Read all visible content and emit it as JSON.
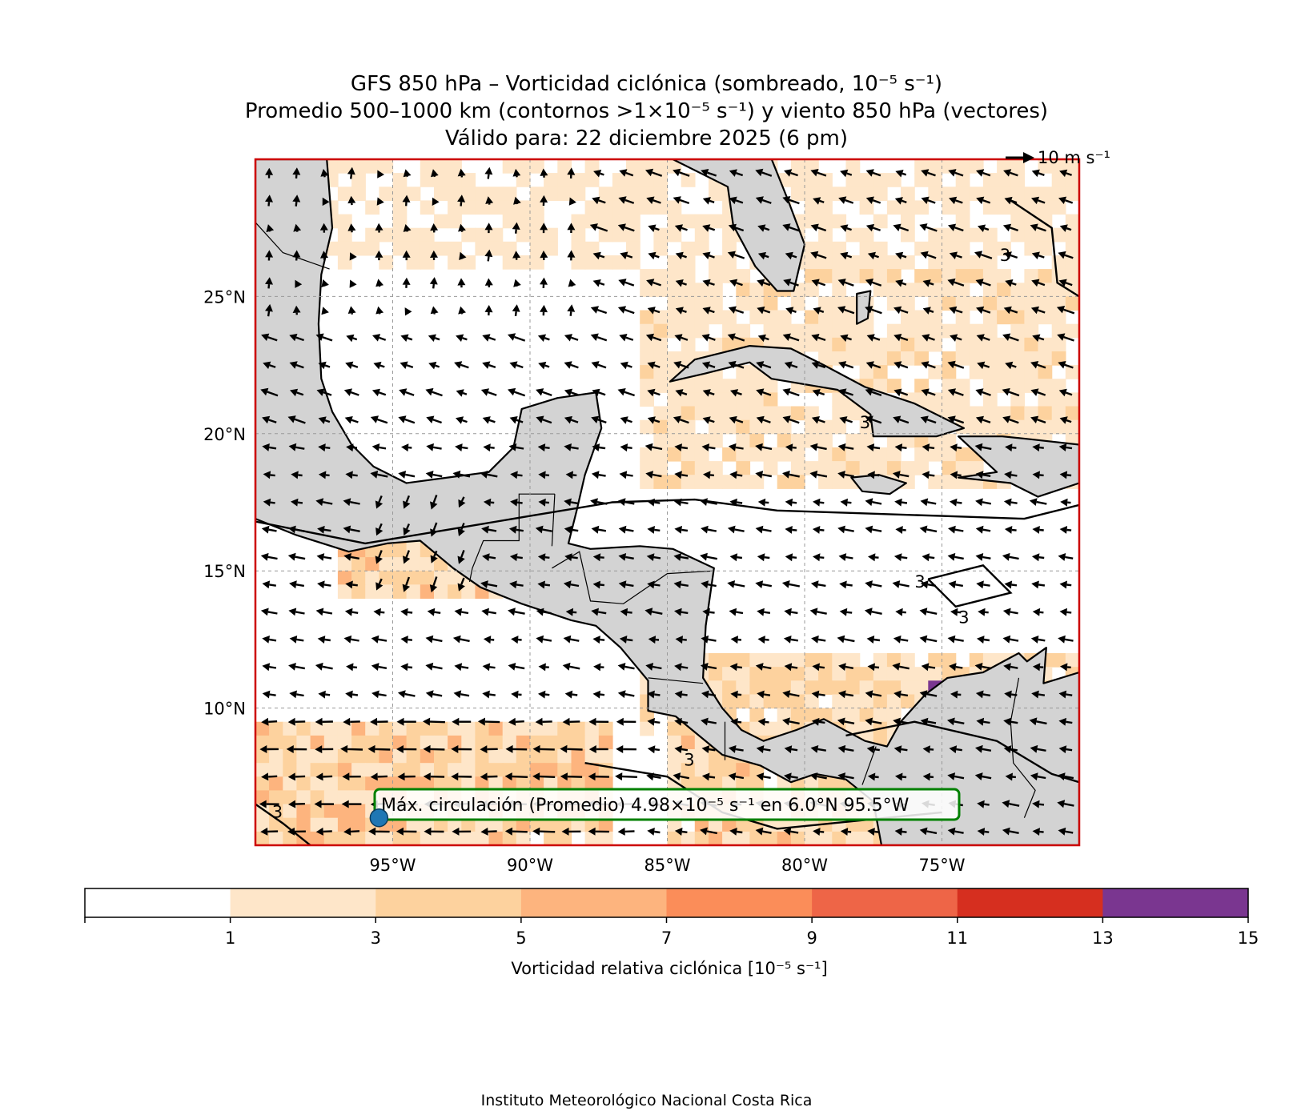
{
  "titles": {
    "line1": "GFS 850 hPa – Vorticidad ciclónica (sombreado, 10⁻⁵ s⁻¹)",
    "line2": "Promedio 500–1000 km (contornos >1×10⁻⁵ s⁻¹) y viento 850 hPa (vectores)",
    "line3": "Válido para: 22 diciembre 2025 (6 pm)"
  },
  "map": {
    "extent": {
      "lon_min": -100,
      "lon_max": -70,
      "lat_min": 5,
      "lat_max": 30
    },
    "frame_color": "#cc0000",
    "land_color": "#d3d3d3",
    "lat_ticks": [
      {
        "value": 25,
        "label": "25°N"
      },
      {
        "value": 20,
        "label": "20°N"
      },
      {
        "value": 15,
        "label": "15°N"
      },
      {
        "value": 10,
        "label": "10°N"
      }
    ],
    "lon_ticks": [
      {
        "value": -95,
        "label": "95°W"
      },
      {
        "value": -90,
        "label": "90°W"
      },
      {
        "value": -85,
        "label": "85°W"
      },
      {
        "value": -80,
        "label": "80°W"
      },
      {
        "value": -75,
        "label": "75°W"
      }
    ],
    "wind_key": {
      "label": "10 m s⁻¹",
      "speed": 10
    },
    "contour_labels": [
      "3",
      "3",
      "3",
      "3",
      "3",
      "3"
    ],
    "max_marker": {
      "lat": 6.0,
      "lon": -95.5,
      "color": "#1f77b4"
    },
    "max_annotation": {
      "text": "Máx. circulación (Promedio) 4.98×10⁻⁵ s⁻¹ en 6.0°N 95.5°W",
      "border_color": "#008000"
    }
  },
  "colorbar": {
    "label": "Vorticidad relativa ciclónica [10⁻⁵ s⁻¹]",
    "ticks": [
      "1",
      "3",
      "5",
      "7",
      "9",
      "11",
      "13",
      "15"
    ],
    "bins": [
      {
        "from": -1,
        "to": 1,
        "color": "#ffffff"
      },
      {
        "from": 1,
        "to": 3,
        "color": "#fee6c9"
      },
      {
        "from": 3,
        "to": 5,
        "color": "#fdd29e"
      },
      {
        "from": 5,
        "to": 7,
        "color": "#fdb47e"
      },
      {
        "from": 7,
        "to": 9,
        "color": "#fb8d59"
      },
      {
        "from": 9,
        "to": 11,
        "color": "#ee6547"
      },
      {
        "from": 11,
        "to": 13,
        "color": "#d62f1f"
      },
      {
        "from": 13,
        "to": 15,
        "color": "#7a3690"
      }
    ]
  },
  "credit": "Instituto Meteorológico Nacional Costa Rica"
}
